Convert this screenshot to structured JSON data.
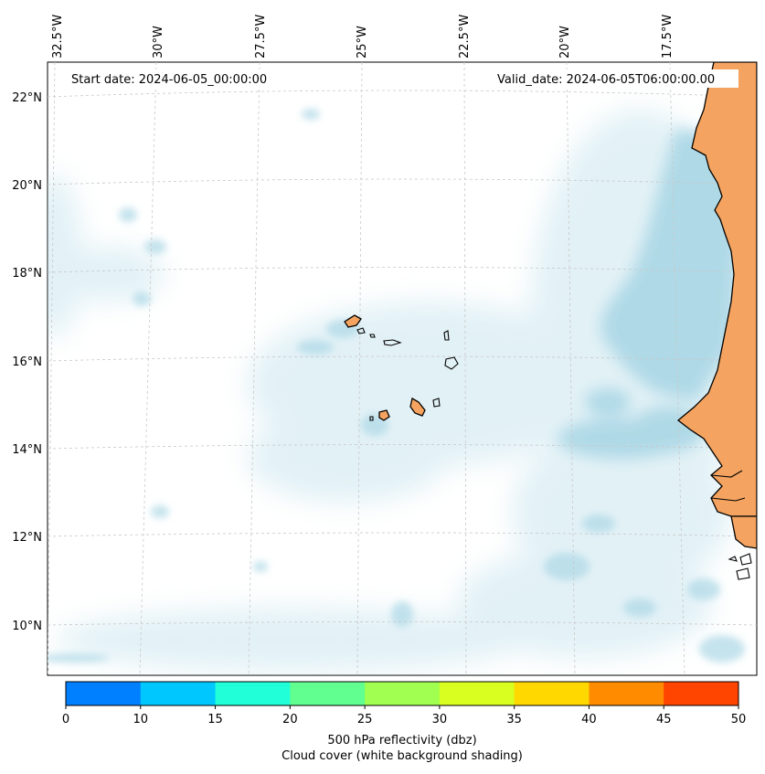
{
  "map": {
    "start_date": "Start date: 2024-06-05_00:00:00",
    "valid_date": "Valid_date: 2024-06-05T06:00:00.00",
    "lon_labels": [
      "32.5°W",
      "30°W",
      "27.5°W",
      "25°W",
      "22.5°W",
      "20°W",
      "17.5°W"
    ],
    "lat_labels": [
      "22°N",
      "20°N",
      "18°N",
      "16°N",
      "14°N",
      "12°N",
      "10°N"
    ],
    "land_color": "#f4a460",
    "cloud_color": "#add8e6",
    "gridlines": "dashed"
  },
  "colorbar": {
    "ticks": [
      "0",
      "10",
      "15",
      "20",
      "25",
      "30",
      "35",
      "40",
      "45",
      "50"
    ],
    "colors": [
      "#0080ff",
      "#00c8ff",
      "#20ffd8",
      "#60ff90",
      "#a0ff50",
      "#d8ff20",
      "#ffd800",
      "#ff8c00",
      "#ff4500"
    ],
    "label_line1": "500 hPa reflectivity (dbz)",
    "label_line2": "Cloud cover (white background shading)"
  }
}
